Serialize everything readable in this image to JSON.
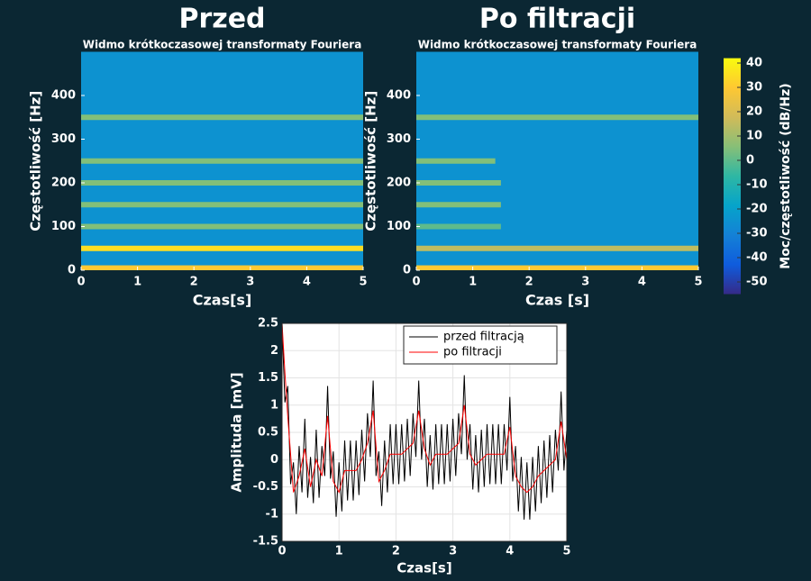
{
  "chart_data": [
    {
      "type": "spectrogram",
      "title": "Przed",
      "subtitle": "Widmo krótkoczasowej transformaty Fouriera",
      "xlabel": "Czas[s]",
      "ylabel": "Częstotliwość [Hz]",
      "xlim": [
        0,
        5
      ],
      "xticks": [
        0,
        1,
        2,
        3,
        4,
        5
      ],
      "ylim": [
        0,
        500
      ],
      "yticks": [
        0,
        100,
        200,
        300,
        400
      ],
      "background_power": -25,
      "harmonics": {
        "frequency": [
          5,
          50,
          100,
          150,
          200,
          250,
          350
        ],
        "power": [
          30,
          35,
          5,
          5,
          5,
          5,
          5
        ],
        "t_start": [
          0,
          0,
          0,
          0,
          0,
          0,
          0
        ],
        "t_end": [
          5,
          5,
          5,
          5,
          5,
          5,
          5
        ]
      }
    },
    {
      "type": "spectrogram",
      "title": "Po filtracji",
      "subtitle": "Widmo krótkoczasowej transformaty Fouriera",
      "xlabel": "Czas [s]",
      "ylabel": "Częstotliwość [Hz]",
      "xlim": [
        0,
        5
      ],
      "xticks": [
        0,
        1,
        2,
        3,
        4,
        5
      ],
      "ylim": [
        0,
        500
      ],
      "yticks": [
        0,
        100,
        200,
        300,
        400
      ],
      "background_power": -25,
      "harmonics": {
        "frequency": [
          5,
          50,
          100,
          150,
          200,
          250,
          350
        ],
        "power": [
          30,
          15,
          0,
          5,
          5,
          5,
          5
        ],
        "t_start": [
          0,
          0,
          0,
          0,
          0,
          0,
          0
        ],
        "t_end": [
          5,
          5,
          1.5,
          1.5,
          1.5,
          1.4,
          5
        ]
      }
    },
    {
      "type": "colorbar",
      "label": "Moc/częstotliwość (dB/Hz)",
      "lim": [
        -55,
        42
      ],
      "ticks": [
        -50,
        -40,
        -30,
        -20,
        -10,
        0,
        10,
        20,
        30,
        40
      ],
      "colormap": [
        "#352a87",
        "#0f5cdd",
        "#1481d6",
        "#06a4ca",
        "#2eb7a4",
        "#87bf77",
        "#d1bb59",
        "#fec832",
        "#f9fb0e"
      ]
    },
    {
      "type": "line",
      "xlabel": "Czas[s]",
      "ylabel": "Amplituda [mV]",
      "grid": true,
      "legend": "northeast",
      "xlim": [
        0,
        5
      ],
      "xticks": [
        0,
        1,
        2,
        3,
        4,
        5
      ],
      "ylim": [
        -1.5,
        2.5
      ],
      "yticks": [
        -1.5,
        -1,
        -0.5,
        0,
        0.5,
        1,
        1.5,
        2,
        2.5
      ],
      "x": [
        0,
        0.05,
        0.1,
        0.15,
        0.2,
        0.25,
        0.3,
        0.35,
        0.4,
        0.45,
        0.5,
        0.55,
        0.6,
        0.65,
        0.7,
        0.75,
        0.8,
        0.85,
        0.9,
        0.95,
        1,
        1.05,
        1.1,
        1.15,
        1.2,
        1.25,
        1.3,
        1.35,
        1.4,
        1.45,
        1.5,
        1.55,
        1.6,
        1.65,
        1.7,
        1.75,
        1.8,
        1.85,
        1.9,
        1.95,
        2,
        2.05,
        2.1,
        2.15,
        2.2,
        2.25,
        2.3,
        2.35,
        2.4,
        2.45,
        2.5,
        2.55,
        2.6,
        2.65,
        2.7,
        2.75,
        2.8,
        2.85,
        2.9,
        2.95,
        3,
        3.05,
        3.1,
        3.15,
        3.2,
        3.25,
        3.3,
        3.35,
        3.4,
        3.45,
        3.5,
        3.55,
        3.6,
        3.65,
        3.7,
        3.75,
        3.8,
        3.85,
        3.9,
        3.95,
        4,
        4.05,
        4.1,
        4.15,
        4.2,
        4.25,
        4.3,
        4.35,
        4.4,
        4.45,
        4.5,
        4.55,
        4.6,
        4.65,
        4.7,
        4.75,
        4.8,
        4.85,
        4.9,
        4.95,
        5
      ],
      "series": [
        {
          "name": "przed filtracją",
          "color": "#000000",
          "values": [
            2.5,
            1.05,
            1.35,
            -0.45,
            -0.05,
            -1.0,
            0.25,
            -0.6,
            0.75,
            -0.7,
            0.05,
            -0.8,
            0.55,
            -0.7,
            0.25,
            -0.3,
            1.35,
            -0.35,
            0.15,
            -1.05,
            -0.05,
            -0.95,
            0.35,
            -0.75,
            0.35,
            -0.75,
            0.35,
            -0.65,
            0.55,
            -0.4,
            0.85,
            0.05,
            1.45,
            -0.3,
            0.15,
            -0.85,
            0.35,
            -0.6,
            0.65,
            -0.45,
            0.65,
            -0.45,
            0.65,
            -0.4,
            0.75,
            -0.3,
            0.85,
            0.05,
            1.45,
            0,
            0.75,
            -0.5,
            0.45,
            -0.55,
            0.65,
            -0.45,
            0.65,
            -0.45,
            0.65,
            -0.4,
            0.75,
            -0.3,
            0.85,
            0.1,
            1.55,
            0,
            0.65,
            -0.55,
            0.45,
            -0.6,
            0.55,
            -0.5,
            0.65,
            -0.45,
            0.65,
            -0.45,
            0.65,
            -0.45,
            0.65,
            -0.2,
            1.15,
            -0.4,
            0.25,
            -0.95,
            0.05,
            -1.1,
            -0.05,
            -1.1,
            0.05,
            -0.95,
            0.25,
            -0.8,
            0.35,
            -0.7,
            0.45,
            -0.6,
            0.55,
            -0.2,
            1.25,
            -0.2,
            0.55
          ]
        },
        {
          "name": "po filtracji",
          "color": "#ff0000",
          "values": [
            2.5,
            1.6,
            0.8,
            0.1,
            -0.6,
            -0.45,
            -0.3,
            -0.05,
            0.2,
            -0.15,
            -0.5,
            -0.25,
            0,
            -0.15,
            -0.3,
            0.25,
            0.8,
            0.2,
            -0.4,
            -0.5,
            -0.6,
            -0.4,
            -0.2,
            -0.2,
            -0.2,
            -0.2,
            -0.2,
            -0.1,
            0,
            0.15,
            0.3,
            0.6,
            0.9,
            0.25,
            -0.4,
            -0.3,
            -0.2,
            -0.05,
            0.1,
            0.1,
            0.1,
            0.1,
            0.1,
            0.15,
            0.2,
            0.25,
            0.3,
            0.6,
            0.9,
            0.55,
            0.2,
            0.05,
            -0.1,
            0,
            0.1,
            0.1,
            0.1,
            0.1,
            0.1,
            0.15,
            0.2,
            0.25,
            0.3,
            0.65,
            1.0,
            0.55,
            0.1,
            0,
            -0.1,
            -0.05,
            0,
            0.05,
            0.1,
            0.1,
            0.1,
            0.1,
            0.1,
            0.1,
            0.1,
            0.35,
            0.6,
            0.15,
            -0.3,
            -0.4,
            -0.5,
            -0.55,
            -0.6,
            -0.55,
            -0.5,
            -0.4,
            -0.3,
            -0.25,
            -0.2,
            -0.15,
            -0.1,
            -0.05,
            0,
            0.35,
            0.7,
            0.35,
            0
          ]
        }
      ]
    }
  ]
}
